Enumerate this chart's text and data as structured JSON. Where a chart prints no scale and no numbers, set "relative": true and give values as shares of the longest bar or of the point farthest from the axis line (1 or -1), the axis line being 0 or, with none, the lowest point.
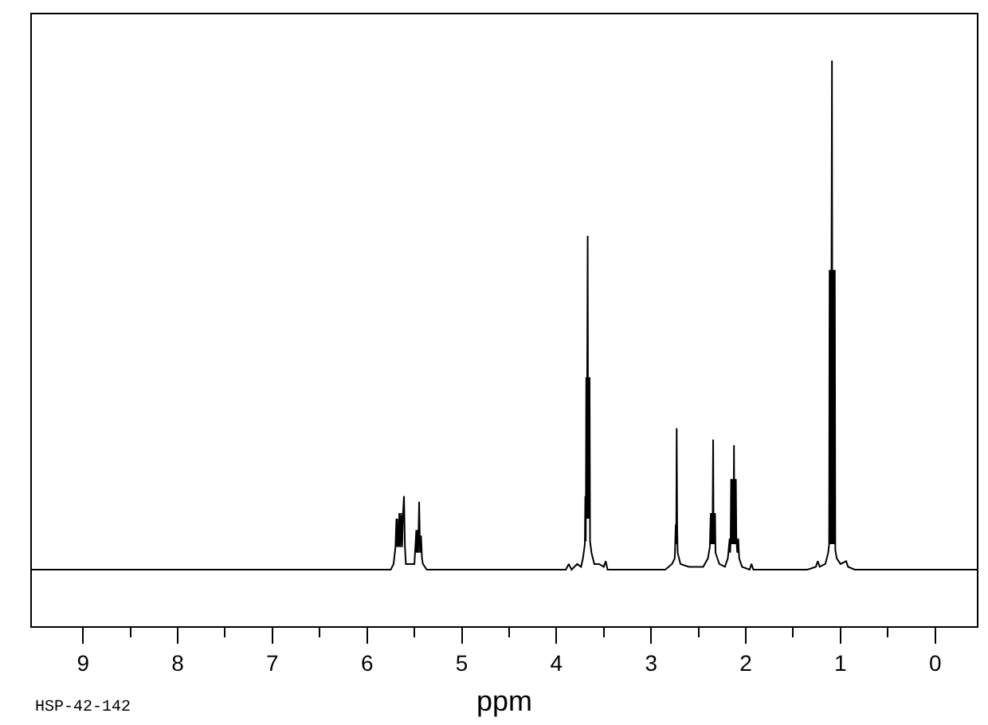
{
  "chart_data": {
    "type": "line",
    "relative": true,
    "color": "#000000",
    "xlabel": "ppm",
    "annotations": [
      "HSP-42-142"
    ],
    "xlim": [
      9.54,
      -0.44
    ],
    "xticks": [
      9,
      {
        "value": 8.5,
        "label": null
      },
      8,
      {
        "value": 7.5,
        "label": null
      },
      7,
      {
        "value": 6.5,
        "label": null
      },
      6,
      {
        "value": 5.5,
        "label": null
      },
      5,
      {
        "value": 4.5,
        "label": null
      },
      4,
      {
        "value": 3.5,
        "label": null
      },
      3,
      {
        "value": 2.5,
        "label": null
      },
      2,
      {
        "value": 1.5,
        "label": null
      },
      1,
      {
        "value": 0.5,
        "label": null
      },
      0
    ],
    "x": [
      9.54,
      5.75,
      5.72,
      5.7,
      5.69,
      5.685,
      5.68,
      5.675,
      5.67,
      5.665,
      5.66,
      5.65,
      5.64,
      5.63,
      5.62,
      5.61,
      5.6,
      5.59,
      5.55,
      5.5,
      5.49,
      5.48,
      5.475,
      5.47,
      5.46,
      5.45,
      5.44,
      5.43,
      5.42,
      5.41,
      5.37,
      3.9,
      3.87,
      3.84,
      3.78,
      3.74,
      3.72,
      3.7,
      3.695,
      3.69,
      3.685,
      3.68,
      3.675,
      3.67,
      3.665,
      3.66,
      3.655,
      3.65,
      3.645,
      3.63,
      3.6,
      3.55,
      3.5,
      3.48,
      3.46,
      2.85,
      2.78,
      2.75,
      2.74,
      2.735,
      2.73,
      2.725,
      2.72,
      2.69,
      2.6,
      2.45,
      2.4,
      2.38,
      2.37,
      2.365,
      2.36,
      2.355,
      2.35,
      2.345,
      2.34,
      2.335,
      2.33,
      2.325,
      2.32,
      2.3,
      2.28,
      2.22,
      2.19,
      2.17,
      2.165,
      2.16,
      2.155,
      2.15,
      2.145,
      2.14,
      2.135,
      2.13,
      2.125,
      2.12,
      2.115,
      2.11,
      2.105,
      2.1,
      2.09,
      2.08,
      2.07,
      2.04,
      1.96,
      1.94,
      1.92,
      1.35,
      1.26,
      1.24,
      1.22,
      1.16,
      1.13,
      1.12,
      1.115,
      1.11,
      1.105,
      1.1,
      1.095,
      1.09,
      1.085,
      1.08,
      1.075,
      1.07,
      1.065,
      1.06,
      1.055,
      1.04,
      1.0,
      0.94,
      0.92,
      0.85,
      -0.44
    ],
    "values": [
      0.1,
      0.1,
      0.11,
      0.14,
      0.19,
      0.14,
      0.19,
      0.14,
      0.18,
      0.14,
      0.2,
      0.14,
      0.2,
      0.14,
      0.2,
      0.23,
      0.14,
      0.11,
      0.11,
      0.11,
      0.14,
      0.17,
      0.13,
      0.17,
      0.13,
      0.22,
      0.13,
      0.16,
      0.12,
      0.11,
      0.1,
      0.1,
      0.11,
      0.1,
      0.11,
      0.105,
      0.12,
      0.145,
      0.23,
      0.15,
      0.44,
      0.19,
      0.44,
      0.69,
      0.19,
      0.44,
      0.19,
      0.44,
      0.15,
      0.13,
      0.11,
      0.11,
      0.105,
      0.115,
      0.1,
      0.1,
      0.11,
      0.12,
      0.18,
      0.145,
      0.35,
      0.18,
      0.13,
      0.11,
      0.105,
      0.105,
      0.12,
      0.14,
      0.2,
      0.145,
      0.2,
      0.145,
      0.2,
      0.33,
      0.145,
      0.2,
      0.145,
      0.2,
      0.13,
      0.12,
      0.11,
      0.105,
      0.12,
      0.155,
      0.13,
      0.155,
      0.26,
      0.145,
      0.26,
      0.145,
      0.26,
      0.145,
      0.32,
      0.145,
      0.26,
      0.145,
      0.26,
      0.155,
      0.13,
      0.155,
      0.12,
      0.105,
      0.1,
      0.11,
      0.1,
      0.1,
      0.105,
      0.115,
      0.105,
      0.11,
      0.13,
      0.145,
      0.63,
      0.145,
      0.63,
      0.145,
      0.63,
      1.0,
      0.145,
      0.63,
      0.145,
      0.63,
      0.145,
      0.63,
      0.135,
      0.12,
      0.11,
      0.115,
      0.105,
      0.1,
      0.1
    ]
  }
}
